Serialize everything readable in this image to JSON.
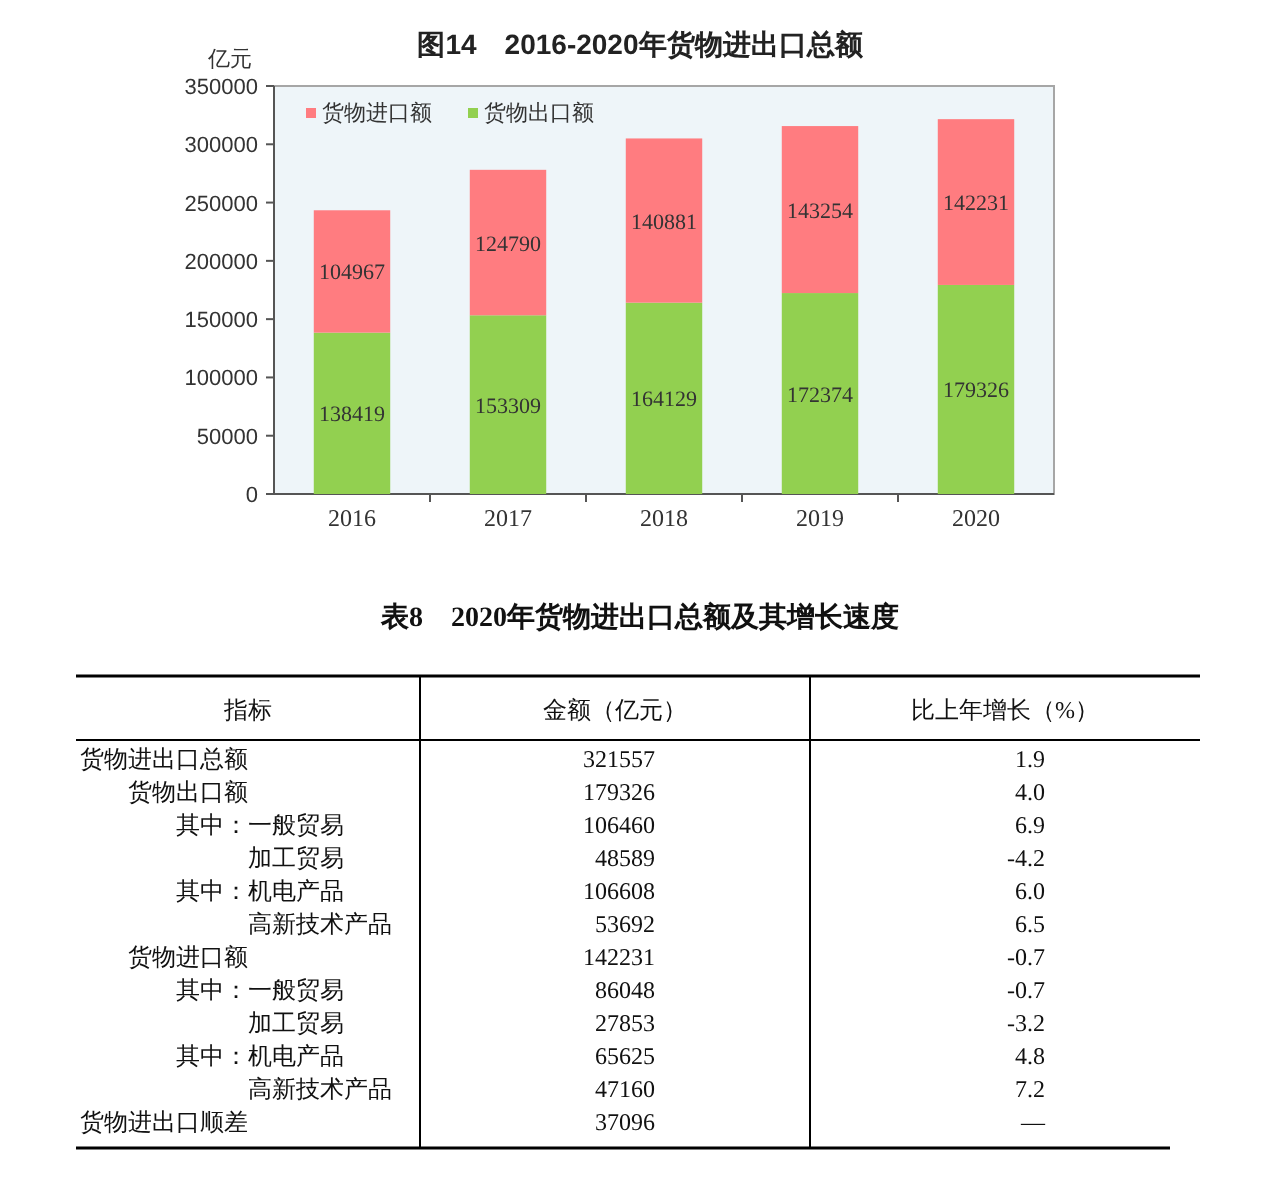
{
  "chart_data": [
    {
      "type": "bar",
      "title": "图14　2016-2020年货物进出口总额",
      "ylabel": "亿元",
      "categories": [
        "2016",
        "2017",
        "2018",
        "2019",
        "2020"
      ],
      "stacked": true,
      "series": [
        {
          "name": "货物出口额",
          "color": "#92d050",
          "values": [
            138419,
            153309,
            164129,
            172374,
            179326
          ]
        },
        {
          "name": "货物进口额",
          "color": "#ff7c80",
          "values": [
            104967,
            124790,
            140881,
            143254,
            142231
          ]
        }
      ],
      "ylim": [
        0,
        350000
      ],
      "yticks": [
        0,
        50000,
        100000,
        150000,
        200000,
        250000,
        300000,
        350000
      ],
      "data_labels": true,
      "legend": "top left"
    },
    {
      "type": "other",
      "title": "表8　2020年货物进出口总额及其增长速度",
      "xlabel": "指标",
      "categories": [
        "货物进出口总额",
        "　　货物出口额",
        "　　　　其中：一般贸易",
        "　　　　　　　加工贸易",
        "　　　　其中：机电产品",
        "　　　　　　　高新技术产品",
        "　　货物进口额",
        "　　　　其中：一般贸易",
        "　　　　　　　加工贸易",
        "　　　　其中：机电产品",
        "　　　　　　　高新技术产品",
        "货物进出口顺差"
      ],
      "series": [
        {
          "name": "金额（亿元）",
          "values": [
            321557,
            179326,
            106460,
            48589,
            106608,
            53692,
            142231,
            86048,
            27853,
            65625,
            47160,
            37096
          ]
        },
        {
          "name": "比上年增长（%）",
          "values": [
            1.9,
            4.0,
            6.9,
            -4.2,
            6.0,
            6.5,
            -0.7,
            -0.7,
            -3.2,
            4.8,
            7.2,
            null
          ],
          "value_labels": [
            "1.9",
            "4.0",
            "6.9",
            "-4.2",
            "6.0",
            "6.5",
            "-0.7",
            "-0.7",
            "-3.2",
            "4.8",
            "7.2",
            "—"
          ]
        }
      ],
      "data_labels": true
    }
  ]
}
